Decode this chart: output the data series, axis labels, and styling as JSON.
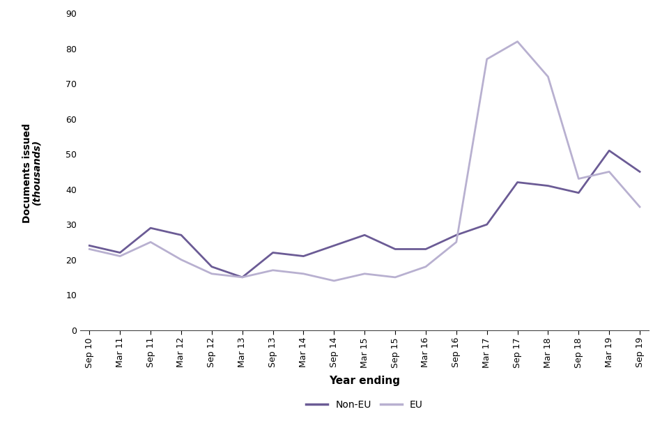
{
  "x_labels": [
    "Sep 10",
    "Mar 11",
    "Sep 11",
    "Mar 12",
    "Sep 12",
    "Mar 13",
    "Sep 13",
    "Mar 14",
    "Sep 14",
    "Mar 15",
    "Sep 15",
    "Mar 16",
    "Sep 16",
    "Mar 17",
    "Sep 17",
    "Mar 18",
    "Sep 18",
    "Mar 19",
    "Sep 19"
  ],
  "non_eu": [
    24,
    22,
    29,
    27,
    18,
    15,
    22,
    21,
    24,
    27,
    23,
    23,
    27,
    30,
    42,
    41,
    39,
    51,
    45
  ],
  "eu": [
    23,
    21,
    25,
    20,
    16,
    15,
    17,
    16,
    14,
    16,
    15,
    18,
    25,
    77,
    82,
    72,
    43,
    45,
    35
  ],
  "non_eu_color": "#6B5B95",
  "eu_color": "#B8B0D0",
  "xlabel": "Year ending",
  "ylim": [
    0,
    90
  ],
  "yticks": [
    0,
    10,
    20,
    30,
    40,
    50,
    60,
    70,
    80,
    90
  ],
  "legend_labels": [
    "Non-EU",
    "EU"
  ],
  "line_width": 2.0,
  "figsize": [
    9.6,
    6.4
  ],
  "dpi": 100
}
